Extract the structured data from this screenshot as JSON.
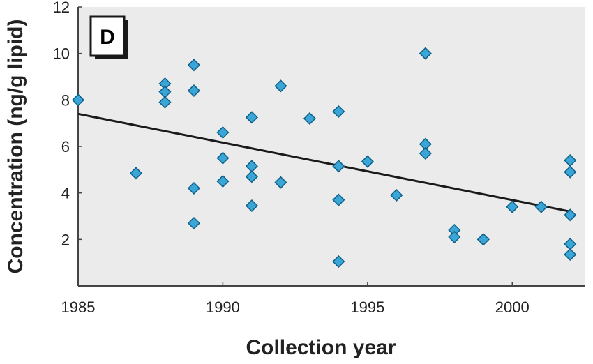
{
  "chart_data": {
    "type": "scatter",
    "panel_label": "D",
    "xlabel": "Collection year",
    "ylabel": "Concentration (ng/g lipid)",
    "xlim": [
      1985,
      2002.5
    ],
    "ylim": [
      0,
      12
    ],
    "x_ticks": [
      1985,
      1990,
      1995,
      2000
    ],
    "y_ticks": [
      2,
      4,
      6,
      8,
      10,
      12
    ],
    "grid": false,
    "colors": {
      "marker": "#3aa6d8",
      "marker_edge": "#0d5f86",
      "trend": "#1a1a1a",
      "plot_bg": "#ebebeb",
      "axis": "#444444"
    },
    "trend_line": {
      "x": [
        1985,
        2002
      ],
      "y": [
        7.4,
        3.2
      ]
    },
    "points": [
      {
        "x": 1985,
        "y": 8.0
      },
      {
        "x": 1987,
        "y": 4.85
      },
      {
        "x": 1988,
        "y": 8.7
      },
      {
        "x": 1988,
        "y": 8.35
      },
      {
        "x": 1988,
        "y": 7.9
      },
      {
        "x": 1989,
        "y": 9.5
      },
      {
        "x": 1989,
        "y": 8.4
      },
      {
        "x": 1989,
        "y": 4.2
      },
      {
        "x": 1989,
        "y": 2.7
      },
      {
        "x": 1990,
        "y": 6.6
      },
      {
        "x": 1990,
        "y": 5.5
      },
      {
        "x": 1990,
        "y": 4.5
      },
      {
        "x": 1991,
        "y": 7.25
      },
      {
        "x": 1991,
        "y": 5.15
      },
      {
        "x": 1991,
        "y": 4.7
      },
      {
        "x": 1991,
        "y": 3.45
      },
      {
        "x": 1992,
        "y": 8.6
      },
      {
        "x": 1992,
        "y": 4.45
      },
      {
        "x": 1993,
        "y": 7.2
      },
      {
        "x": 1994,
        "y": 7.5
      },
      {
        "x": 1994,
        "y": 5.15
      },
      {
        "x": 1994,
        "y": 3.7
      },
      {
        "x": 1994,
        "y": 1.05
      },
      {
        "x": 1995,
        "y": 5.35
      },
      {
        "x": 1996,
        "y": 3.9
      },
      {
        "x": 1997,
        "y": 10.0
      },
      {
        "x": 1997,
        "y": 6.1
      },
      {
        "x": 1997,
        "y": 5.7
      },
      {
        "x": 1998,
        "y": 2.4
      },
      {
        "x": 1998,
        "y": 2.1
      },
      {
        "x": 1999,
        "y": 2.0
      },
      {
        "x": 2000,
        "y": 3.4
      },
      {
        "x": 2001,
        "y": 3.4
      },
      {
        "x": 2002,
        "y": 5.4
      },
      {
        "x": 2002,
        "y": 4.9
      },
      {
        "x": 2002,
        "y": 3.05
      },
      {
        "x": 2002,
        "y": 1.8
      },
      {
        "x": 2002,
        "y": 1.35
      }
    ]
  }
}
